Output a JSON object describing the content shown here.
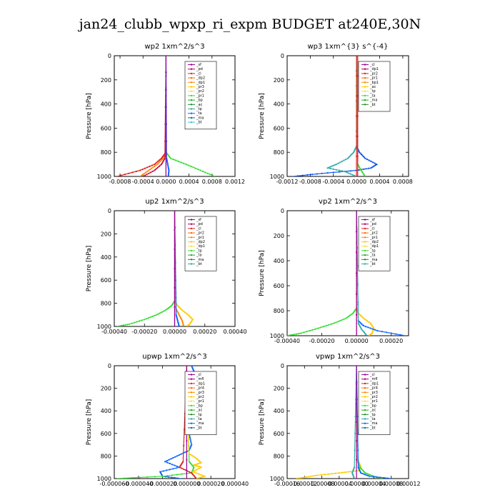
{
  "figure_title": "jan24_clubb_wpxp_ri_expm  BUDGET at240E,30N",
  "chart_data": [
    {
      "type": "line",
      "title": "wp2  1xm^2/s^3",
      "ylabel": "Pressure [hPa]",
      "xlim": [
        -0.0009,
        0.0012
      ],
      "ylim": [
        1000,
        0
      ],
      "xticks": [
        -0.0008,
        -0.0004,
        0.0,
        0.0004,
        0.0008,
        0.0012
      ],
      "xtick_labels": [
        "-0.0008",
        "-0.0004",
        "0.0000",
        "0.0004",
        "0.0008",
        "0.0012"
      ],
      "yticks": [
        0,
        200,
        400,
        600,
        800,
        1000
      ],
      "legend_placement": "top-right",
      "legend": [
        "_sf",
        "_pd",
        "_cl",
        "_dp2",
        "_dp1",
        "_pr3",
        "_pr2",
        "_pr1",
        "_bp",
        "_ac",
        "_tp",
        "_ta",
        "_ma",
        "_bt"
      ],
      "series": [
        {
          "name": "_bp",
          "color": "#33dd33",
          "p": [
            0,
            800,
            850,
            900,
            950,
            1000
          ],
          "x": [
            0,
            0,
            8e-05,
            0.00035,
            0.0006,
            0.00085
          ]
        },
        {
          "name": "_dp1",
          "color": "#ff8800",
          "p": [
            0,
            800,
            850,
            900,
            950,
            1000
          ],
          "x": [
            0,
            0,
            -5e-05,
            -0.00015,
            -0.0003,
            -0.00045
          ]
        },
        {
          "name": "_pr1",
          "color": "#dd2222",
          "p": [
            0,
            800,
            850,
            900,
            950,
            1000
          ],
          "x": [
            0,
            0,
            -8e-05,
            -0.0002,
            -0.00045,
            -0.00085
          ]
        },
        {
          "name": "_pr3",
          "color": "#cc1144",
          "p": [
            0,
            850,
            900,
            950,
            1000
          ],
          "x": [
            0,
            -2e-05,
            -8e-05,
            -0.0002,
            -0.0004
          ]
        },
        {
          "name": "_ta",
          "color": "#1166ff",
          "p": [
            0,
            850,
            900,
            950,
            1000
          ],
          "x": [
            0,
            1e-05,
            3e-05,
            5e-05,
            4e-05
          ]
        },
        {
          "name": "_bt",
          "color": "#33cccc",
          "p": [
            0,
            1000
          ],
          "x": [
            0,
            0
          ]
        },
        {
          "name": "_sf",
          "color": "#990099",
          "p": [
            0,
            1000
          ],
          "x": [
            0,
            0
          ]
        }
      ]
    },
    {
      "type": "line",
      "title": "wp3  1xm^{3} s^{-4}",
      "ylabel": "Pressure [hPa]",
      "xlim": [
        -0.0012,
        0.0009
      ],
      "ylim": [
        1000,
        0
      ],
      "xticks": [
        -0.0012,
        -0.0008,
        -0.0004,
        0.0,
        0.0004,
        0.0008
      ],
      "xtick_labels": [
        "-0.0012",
        "-0.0008",
        "-0.0004",
        "0.0000",
        "0.0004",
        "0.0008"
      ],
      "yticks": [
        0,
        200,
        400,
        600,
        800,
        1000
      ],
      "legend_placement": "top-right",
      "legend": [
        "_cl",
        "_dp1",
        "_pr2",
        "_pr1",
        "_bp1",
        "_ac",
        "_tp",
        "_ta",
        "_ma",
        "_bt"
      ],
      "series": [
        {
          "name": "_ta",
          "color": "#1155ee",
          "p": [
            0,
            750,
            800,
            850,
            900,
            930,
            950,
            975,
            1000
          ],
          "x": [
            0,
            0,
            5e-05,
            0.00015,
            0.00035,
            0.00025,
            0.0,
            -0.0006,
            -0.0011
          ]
        },
        {
          "name": "_tp",
          "color": "#33aaaa",
          "p": [
            0,
            750,
            800,
            850,
            900,
            930,
            960,
            1000
          ],
          "x": [
            0,
            0,
            -5e-05,
            -0.00015,
            -0.00035,
            -0.0005,
            -0.0002,
            0.0
          ]
        },
        {
          "name": "_bp1",
          "color": "#33dd33",
          "p": [
            0,
            900,
            950,
            1000
          ],
          "x": [
            0,
            2e-05,
            8e-05,
            0.00015
          ]
        },
        {
          "name": "_pr1",
          "color": "#dd2222",
          "p": [
            0,
            1000
          ],
          "x": [
            0,
            0
          ]
        },
        {
          "name": "_cl",
          "color": "#dd2222",
          "p": [
            0,
            1000
          ],
          "x": [
            2e-05,
            2e-05
          ]
        }
      ]
    },
    {
      "type": "line",
      "title": "up2  1xm^2/s^3",
      "ylabel": "Pressure [hPa]",
      "xlim": [
        -0.0004,
        0.0004
      ],
      "ylim": [
        1000,
        0
      ],
      "xticks": [
        -0.0004,
        -0.0002,
        0.0,
        0.0002,
        0.0004
      ],
      "xtick_labels": [
        "-0.00040",
        "-0.00020",
        "0.00000",
        "0.00020",
        "0.00040"
      ],
      "yticks": [
        0,
        200,
        400,
        600,
        800,
        1000
      ],
      "legend_placement": "top-right",
      "legend": [
        "_sf",
        "_pd",
        "_cl",
        "_pr2",
        "_pr1",
        "_dp2",
        "_dp1",
        "_tp",
        "_ta",
        "_ma",
        "_bt"
      ],
      "series": [
        {
          "name": "_dp1",
          "color": "#33dd33",
          "p": [
            0,
            780,
            820,
            860,
            900,
            940,
            980,
            1000
          ],
          "x": [
            0,
            0,
            -2e-05,
            -6e-05,
            -0.00012,
            -0.0002,
            -0.0003,
            -0.00038
          ]
        },
        {
          "name": "_pr1",
          "color": "#ffcc00",
          "p": [
            0,
            780,
            820,
            860,
            900,
            940,
            980,
            1000
          ],
          "x": [
            0,
            0,
            2e-05,
            5e-05,
            9e-05,
            0.00012,
            0.0001,
            8e-05
          ]
        },
        {
          "name": "_pr2",
          "color": "#ff8800",
          "p": [
            0,
            850,
            900,
            950,
            1000
          ],
          "x": [
            0,
            1e-05,
            3e-05,
            5e-05,
            6e-05
          ]
        },
        {
          "name": "_tp",
          "color": "#1166ff",
          "p": [
            0,
            900,
            950,
            1000
          ],
          "x": [
            0,
            1e-05,
            2e-05,
            3e-05
          ]
        },
        {
          "name": "_cl",
          "color": "#dd2222",
          "p": [
            0,
            1000
          ],
          "x": [
            0,
            0
          ]
        },
        {
          "name": "_sf",
          "color": "#990099",
          "p": [
            0,
            1000
          ],
          "x": [
            0,
            0
          ]
        }
      ]
    },
    {
      "type": "line",
      "title": "vp2  1xm^2/s^3",
      "ylabel": "Pressure [hPa]",
      "xlim": [
        -0.0004,
        0.0003
      ],
      "ylim": [
        1000,
        0
      ],
      "xticks": [
        -0.0004,
        -0.0002,
        0.0,
        0.0002
      ],
      "xtick_labels": [
        "-0.00040",
        "-0.00020",
        "0.00000",
        "0.00020"
      ],
      "yticks": [
        0,
        200,
        400,
        600,
        800,
        1000
      ],
      "legend_placement": "top-right",
      "legend": [
        "_sf",
        "_pd",
        "_cl",
        "_pr2",
        "_pr1",
        "_dp2",
        "_dp1",
        "_tp",
        "_ta",
        "_ma",
        "_bt"
      ],
      "series": [
        {
          "name": "_dp1",
          "color": "#33dd33",
          "p": [
            0,
            780,
            820,
            860,
            900,
            940,
            980,
            1000
          ],
          "x": [
            0,
            0,
            -2e-05,
            -6e-05,
            -0.00013,
            -0.00022,
            -0.00032,
            -0.0004
          ]
        },
        {
          "name": "_pr1",
          "color": "#ffcc00",
          "p": [
            0,
            780,
            820,
            860,
            900,
            940,
            980,
            1000
          ],
          "x": [
            0,
            0,
            1e-05,
            4e-05,
            8e-05,
            0.0001,
            9e-05,
            7e-05
          ]
        },
        {
          "name": "_tp",
          "color": "#1166ff",
          "p": [
            0,
            880,
            920,
            960,
            1000
          ],
          "x": [
            0,
            1e-05,
            4e-05,
            0.00012,
            0.00028
          ]
        },
        {
          "name": "_ta",
          "color": "#33aaaa",
          "p": [
            0,
            900,
            950,
            1000
          ],
          "x": [
            0,
            1e-05,
            3e-05,
            6e-05
          ]
        },
        {
          "name": "_cl",
          "color": "#dd2222",
          "p": [
            0,
            1000
          ],
          "x": [
            0,
            0
          ]
        },
        {
          "name": "_sf",
          "color": "#990099",
          "p": [
            0,
            1000
          ],
          "x": [
            0,
            0
          ]
        }
      ]
    },
    {
      "type": "line",
      "title": "upwp  1xm^2/s^3",
      "ylabel": "Pressure [hPa]",
      "xlim": [
        -6e-05,
        4e-05
      ],
      "ylim": [
        1000,
        0
      ],
      "xticks": [
        -6e-05,
        -4e-05,
        -2e-05,
        0.0,
        2e-05,
        4e-05
      ],
      "xtick_labels": [
        "-0.000060",
        "-0.000040",
        "-0.000020",
        "0.000000",
        "0.000020",
        "0.000040"
      ],
      "yticks": [
        0,
        200,
        400,
        600,
        800,
        1000
      ],
      "legend_placement": "top-right",
      "legend": [
        "_cl",
        "_mfl",
        "_dp1",
        "_pr4",
        "_pr3",
        "_pr2",
        "_pr1",
        "_bp",
        "_ac",
        "_tp",
        "_ta",
        "_ma",
        "_bt"
      ],
      "series": [
        {
          "name": "_ta",
          "color": "#1166ff",
          "p": [
            0,
            50,
            100,
            200,
            400,
            600,
            700,
            750,
            800,
            850,
            900,
            940,
            980,
            1000
          ],
          "x": [
            4e-06,
            6e-06,
            4e-06,
            2e-06,
            1e-06,
            2e-06,
            4e-06,
            2e-06,
            -8e-06,
            -1.8e-05,
            -6e-06,
            -2.2e-05,
            -2e-05,
            -5e-06
          ]
        },
        {
          "name": "_bp",
          "color": "#33dd33",
          "p": [
            0,
            850,
            900,
            950,
            980,
            1000
          ],
          "x": [
            0,
            2e-06,
            6e-06,
            4e-06,
            -2e-05,
            -5.8e-05
          ]
        },
        {
          "name": "_pr1",
          "color": "#ffcc00",
          "p": [
            0,
            780,
            820,
            860,
            880,
            900,
            940,
            980,
            1000
          ],
          "x": [
            0,
            2e-06,
            8e-06,
            1.2e-05,
            6e-06,
            1.2e-05,
            5e-06,
            1.5e-05,
            8e-06
          ]
        },
        {
          "name": "_pr3",
          "color": "#dd2222",
          "p": [
            0,
            850,
            900,
            950,
            1000
          ],
          "x": [
            0,
            -3e-06,
            -6e-06,
            4e-06,
            8e-06
          ]
        },
        {
          "name": "_mfl",
          "color": "#990099",
          "p": [
            0,
            1000
          ],
          "x": [
            0,
            0
          ]
        }
      ]
    },
    {
      "type": "line",
      "title": "vpwp  1xm^2/s^3",
      "ylabel": "Pressure [hPa]",
      "xlim": [
        -0.00016,
        0.00012
      ],
      "ylim": [
        1000,
        0
      ],
      "xticks": [
        -0.00016,
        -0.00012,
        -8e-05,
        -4e-05,
        0.0,
        4e-05,
        8e-05,
        0.00012
      ],
      "xtick_labels": [
        "-0.00016",
        "-0.00012",
        "-0.00008",
        "-0.00004",
        "0.00000",
        "0.00004",
        "0.00008",
        "0.00012"
      ],
      "yticks": [
        0,
        200,
        400,
        600,
        800,
        1000
      ],
      "legend_placement": "top-right",
      "legend": [
        "_cl",
        "_mfl",
        "_dp1",
        "_pr4",
        "_pr3",
        "_pr2",
        "_pr1",
        "_bp",
        "_ac",
        "_tp",
        "_ta",
        "_ma",
        "_bt"
      ],
      "series": [
        {
          "name": "_pr1",
          "color": "#ffcc00",
          "p": [
            0,
            800,
            850,
            900,
            930,
            950,
            970,
            990,
            1000
          ],
          "x": [
            0,
            0,
            5e-06,
            1e-05,
            5e-06,
            -4e-05,
            -9e-05,
            -0.00012,
            -0.00014
          ]
        },
        {
          "name": "_bp",
          "color": "#33dd33",
          "p": [
            0,
            850,
            900,
            950,
            980,
            1000
          ],
          "x": [
            0,
            3e-06,
            8e-06,
            2e-05,
            4e-05,
            6e-05
          ]
        },
        {
          "name": "_ta",
          "color": "#1166ff",
          "p": [
            0,
            900,
            950,
            980,
            1000
          ],
          "x": [
            0,
            4e-06,
            1e-05,
            3e-05,
            8e-05
          ]
        },
        {
          "name": "_tp",
          "color": "#33aaaa",
          "p": [
            0,
            900,
            950,
            1000
          ],
          "x": [
            0,
            -5e-06,
            -1e-05,
            -5e-06
          ]
        },
        {
          "name": "_mfl",
          "color": "#990099",
          "p": [
            0,
            1000
          ],
          "x": [
            0,
            0
          ]
        }
      ]
    }
  ]
}
